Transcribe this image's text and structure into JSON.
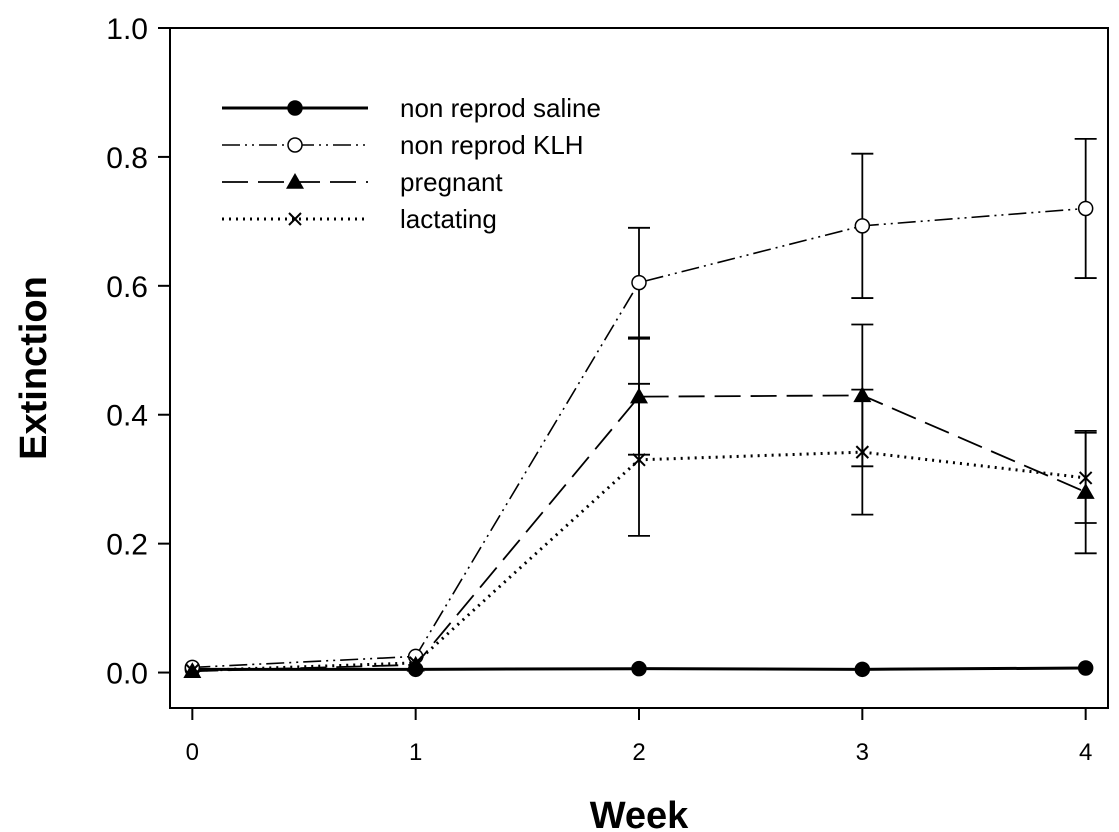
{
  "chart_data": {
    "type": "line",
    "title": "",
    "xlabel": "Week",
    "ylabel": "Extinction",
    "xlim": [
      -0.1,
      4.1
    ],
    "ylim": [
      -0.055,
      1.0
    ],
    "x_ticks": [
      0,
      1,
      2,
      3,
      4
    ],
    "y_ticks": [
      0.0,
      0.2,
      0.4,
      0.6,
      0.8,
      1.0
    ],
    "x_tick_labels": [
      "0",
      "1",
      "2",
      "3",
      "4"
    ],
    "y_tick_labels": [
      "0.0",
      "0.2",
      "0.4",
      "0.6",
      "0.8",
      "1.0"
    ],
    "grid": false,
    "legend_position": "top-left",
    "x": [
      0,
      1,
      2,
      3,
      4
    ],
    "series": [
      {
        "name": "non reprod saline",
        "values": [
          0.005,
          0.005,
          0.006,
          0.005,
          0.007
        ],
        "error": [
          0,
          0,
          0,
          0,
          0
        ],
        "marker": "filled-circle",
        "line_style": "solid",
        "color": "#000000"
      },
      {
        "name": "non reprod KLH",
        "values": [
          0.008,
          0.025,
          0.605,
          0.693,
          0.72
        ],
        "error": [
          0,
          0,
          0.085,
          0.112,
          0.108
        ],
        "marker": "open-circle",
        "line_style": "dash-dot-dot",
        "color": "#000000"
      },
      {
        "name": "pregnant",
        "values": [
          0.002,
          0.012,
          0.428,
          0.43,
          0.28
        ],
        "error": [
          0,
          0,
          0.09,
          0.11,
          0.095
        ],
        "marker": "filled-triangle",
        "line_style": "long-dash",
        "color": "#000000"
      },
      {
        "name": "lactating",
        "values": [
          0.003,
          0.015,
          0.33,
          0.342,
          0.302
        ],
        "error": [
          0,
          0,
          0.118,
          0.097,
          0.07
        ],
        "marker": "x",
        "line_style": "dotted",
        "color": "#000000"
      }
    ]
  }
}
